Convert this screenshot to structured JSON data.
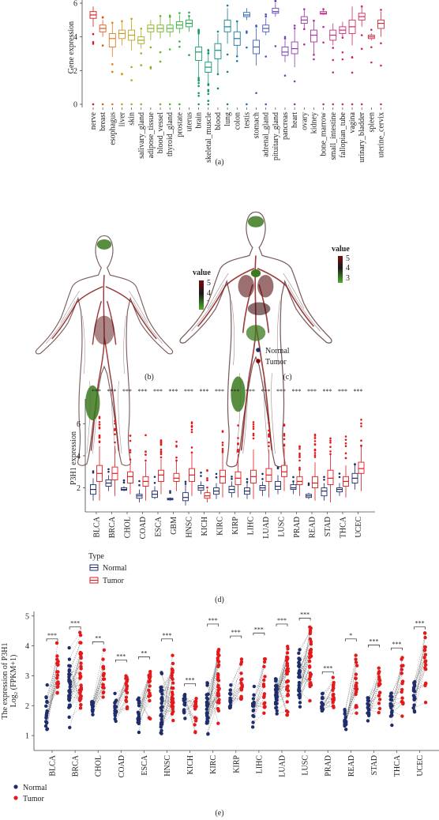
{
  "colors": {
    "normal": "#1f2d6b",
    "tumor": "#e31a1c",
    "body_fill": "#ffffff",
    "body_outline": "#7a5a5a",
    "vessel": "#8b1a1a",
    "green": "#3c7a1e"
  },
  "panel_a": {
    "caption": "(a)",
    "ylabel": "Gene expression",
    "yticks": [
      "0",
      "2",
      "4",
      "6"
    ],
    "chart_data": {
      "type": "box",
      "ylim": [
        0,
        6
      ],
      "categories": [
        "nerve",
        "breast",
        "esophagus",
        "liver",
        "skin",
        "salivary_gland",
        "adipose_tissue",
        "blood_vessel",
        "thyroid_gland",
        "prostate",
        "uterus",
        "brain",
        "skeletal_muscle",
        "blood",
        "lung",
        "colon",
        "testis",
        "stomach",
        "adrenal_gland",
        "pituitary_gland",
        "pancreas",
        "heart",
        "ovary",
        "kidney",
        "bone_marrow",
        "small_intestine",
        "fallopian_tube",
        "vagina",
        "urinary_bladder",
        "spleen",
        "uterine_cervix"
      ],
      "medians": [
        5.3,
        4.5,
        3.9,
        4.2,
        4.1,
        3.8,
        4.5,
        4.5,
        4.5,
        4.7,
        4.8,
        3.1,
        2.2,
        3.2,
        4.6,
        3.9,
        5.3,
        3.4,
        4.5,
        5.5,
        3.1,
        3.3,
        5.0,
        4.1,
        5.4,
        4.1,
        4.4,
        4.6,
        5.2,
        4.0,
        4.8
      ],
      "q1": [
        5.1,
        4.3,
        3.4,
        3.9,
        3.8,
        3.6,
        4.3,
        4.3,
        4.3,
        4.5,
        4.6,
        2.6,
        1.9,
        2.7,
        4.3,
        3.5,
        5.2,
        3.0,
        4.3,
        5.4,
        2.9,
        3.0,
        4.8,
        3.7,
        5.35,
        3.8,
        4.2,
        4.2,
        5.0,
        3.9,
        4.5
      ],
      "q3": [
        5.5,
        4.7,
        4.2,
        4.4,
        4.4,
        4.0,
        4.7,
        4.7,
        4.7,
        4.9,
        5.0,
        3.4,
        2.5,
        3.6,
        5.0,
        4.3,
        5.45,
        3.8,
        4.7,
        5.7,
        3.4,
        3.7,
        5.2,
        4.4,
        5.5,
        4.4,
        4.6,
        5.0,
        5.4,
        4.1,
        5.0
      ],
      "whisker_low": [
        4.6,
        4.0,
        2.8,
        3.5,
        3.2,
        3.3,
        3.8,
        3.9,
        4.0,
        4.2,
        4.3,
        1.6,
        1.2,
        1.8,
        3.6,
        2.9,
        5.0,
        2.3,
        4.1,
        5.2,
        2.5,
        2.2,
        4.5,
        3.0,
        5.3,
        3.5,
        4.0,
        3.5,
        4.6,
        3.8,
        4.0
      ],
      "whisker_high": [
        5.8,
        5.0,
        4.8,
        4.9,
        5.0,
        4.4,
        5.0,
        5.2,
        5.1,
        5.3,
        5.2,
        4.2,
        3.0,
        4.2,
        5.7,
        4.9,
        5.7,
        4.5,
        5.1,
        6.0,
        3.8,
        4.5,
        5.6,
        4.9,
        5.6,
        4.8,
        4.9,
        5.8,
        5.8,
        4.2,
        5.5
      ]
    }
  },
  "panel_b": {
    "caption": "(b)",
    "legend_title": "value",
    "legend_ticks": [
      "5",
      "4",
      "3"
    ]
  },
  "panel_c": {
    "caption": "(c)",
    "legend_title": "value",
    "legend_ticks": [
      "5",
      "4",
      "3"
    ],
    "legend_items": [
      "Normal",
      "Tumor"
    ]
  },
  "panel_d": {
    "caption": "(d)",
    "ylabel": "P3H1 expression",
    "yticks": [
      "2",
      "4",
      "6"
    ],
    "legend_title": "Type",
    "legend_items": [
      "Normal",
      "Tumor"
    ],
    "chart_data": {
      "type": "box",
      "ylim": [
        0.5,
        7.2
      ],
      "categories": [
        "BLCA",
        "BRCA",
        "CHOL",
        "COAD",
        "ESCA",
        "GBM",
        "HNSC",
        "KICH",
        "KIRC",
        "KIRP",
        "LIHC",
        "LUAD",
        "LUSC",
        "PRAD",
        "READ",
        "STAD",
        "THCA",
        "UCEC"
      ],
      "significance": [
        "***",
        "***",
        "***",
        "***",
        "***",
        "***",
        "***",
        "***",
        "***",
        "***",
        "***",
        "***",
        "***",
        "***",
        "***",
        "***",
        "***",
        "***"
      ],
      "series": [
        {
          "name": "Normal",
          "medians": [
            1.9,
            2.3,
            1.9,
            1.5,
            1.6,
            1.3,
            1.4,
            2.0,
            1.8,
            1.9,
            1.8,
            2.0,
            2.1,
            2.0,
            1.5,
            1.8,
            1.9,
            2.6
          ],
          "q1": [
            1.6,
            2.1,
            1.85,
            1.35,
            1.4,
            1.25,
            1.2,
            1.85,
            1.6,
            1.7,
            1.6,
            1.85,
            1.9,
            1.9,
            1.4,
            1.5,
            1.75,
            2.3
          ],
          "q3": [
            2.2,
            2.5,
            2.0,
            1.6,
            1.8,
            1.35,
            1.7,
            2.15,
            2.0,
            2.1,
            2.0,
            2.15,
            2.4,
            2.2,
            1.6,
            2.0,
            2.0,
            2.9
          ],
          "whisker_low": [
            1.2,
            1.8,
            1.8,
            1.1,
            1.3,
            1.2,
            0.9,
            1.6,
            1.3,
            1.4,
            1.3,
            1.5,
            1.6,
            1.6,
            1.3,
            1.2,
            1.5,
            1.9
          ],
          "whisker_high": [
            2.6,
            2.8,
            2.1,
            1.9,
            2.1,
            1.4,
            2.2,
            2.4,
            2.3,
            2.4,
            2.3,
            2.4,
            2.8,
            2.4,
            1.7,
            2.3,
            2.3,
            3.4
          ]
        },
        {
          "name": "Tumor",
          "medians": [
            2.9,
            2.9,
            2.7,
            2.4,
            2.8,
            2.6,
            2.8,
            1.5,
            2.7,
            2.6,
            2.7,
            2.8,
            3.0,
            2.4,
            2.3,
            2.6,
            2.4,
            3.2
          ],
          "q1": [
            2.4,
            2.5,
            2.3,
            2.1,
            2.4,
            2.4,
            2.4,
            1.35,
            2.3,
            2.2,
            2.3,
            2.4,
            2.7,
            2.2,
            2.0,
            2.2,
            2.1,
            2.9
          ],
          "q3": [
            3.4,
            3.3,
            3.0,
            2.7,
            3.1,
            2.9,
            3.2,
            1.7,
            3.1,
            3.0,
            3.1,
            3.2,
            3.4,
            2.7,
            2.7,
            3.1,
            2.7,
            3.6
          ],
          "whisker_low": [
            1.2,
            1.5,
            1.6,
            1.2,
            1.6,
            1.8,
            1.5,
            1.1,
            1.4,
            1.4,
            1.3,
            1.4,
            1.8,
            1.5,
            1.2,
            1.1,
            1.4,
            1.8
          ],
          "whisker_high": [
            4.6,
            4.6,
            3.5,
            3.6,
            3.8,
            3.7,
            4.2,
            1.9,
            4.2,
            4.1,
            4.4,
            4.4,
            4.5,
            3.1,
            3.6,
            4.1,
            3.4,
            4.6
          ]
        }
      ]
    }
  },
  "panel_e": {
    "caption": "(e)",
    "ylabel_line1": "The expression of P3H1",
    "ylabel_line2": "Log₂ (FPKM+1)",
    "yticks": [
      "1",
      "2",
      "3",
      "4",
      "5"
    ],
    "legend_items": [
      "Normal",
      "Tumor"
    ],
    "chart_data": {
      "type": "scatter",
      "ylim": [
        0.5,
        5.1
      ],
      "categories": [
        "BLCA",
        "BRCA",
        "CHOL",
        "COAD",
        "ESCA",
        "HNSC",
        "KICH",
        "KIRC",
        "KIRP",
        "LIHC",
        "LUAD",
        "LUSC",
        "PRAD",
        "READ",
        "STAD",
        "THCA",
        "UCEC"
      ],
      "significance": [
        "***",
        "***",
        "**",
        "***",
        "**",
        "***",
        "***",
        "***",
        "***",
        "***",
        "***",
        "***",
        "***",
        "*",
        "***",
        "***",
        "***"
      ],
      "series": [
        {
          "name": "Normal",
          "center": [
            1.9,
            2.6,
            1.9,
            1.6,
            1.6,
            1.6,
            1.9,
            1.7,
            2.1,
            1.9,
            2.1,
            2.4,
            2.0,
            1.5,
            1.7,
            1.8,
            2.5
          ],
          "min": [
            0.7,
            1.2,
            1.6,
            1.0,
            1.1,
            0.7,
            1.5,
            1.0,
            1.6,
            1.2,
            1.6,
            1.7,
            1.6,
            1.2,
            1.1,
            1.3,
            1.6
          ],
          "max": [
            2.8,
            4.0,
            2.3,
            2.6,
            2.4,
            3.2,
            2.6,
            2.8,
            2.8,
            2.7,
            3.0,
            4.2,
            2.6,
            1.9,
            2.6,
            2.8,
            3.4
          ]
        },
        {
          "name": "Tumor",
          "center": [
            3.0,
            2.9,
            2.7,
            2.4,
            2.6,
            2.6,
            1.6,
            2.6,
            2.6,
            2.6,
            2.8,
            3.2,
            2.3,
            2.1,
            2.6,
            2.5,
            3.1
          ],
          "min": [
            2.0,
            1.4,
            2.0,
            1.5,
            1.5,
            1.2,
            1.1,
            1.4,
            1.5,
            1.3,
            1.6,
            2.0,
            1.7,
            1.4,
            1.4,
            1.6,
            2.1
          ],
          "max": [
            4.1,
            4.5,
            4.0,
            3.4,
            3.5,
            4.1,
            2.6,
            4.6,
            4.2,
            4.3,
            4.6,
            4.8,
            3.0,
            4.1,
            3.9,
            3.8,
            4.5
          ]
        }
      ]
    }
  }
}
